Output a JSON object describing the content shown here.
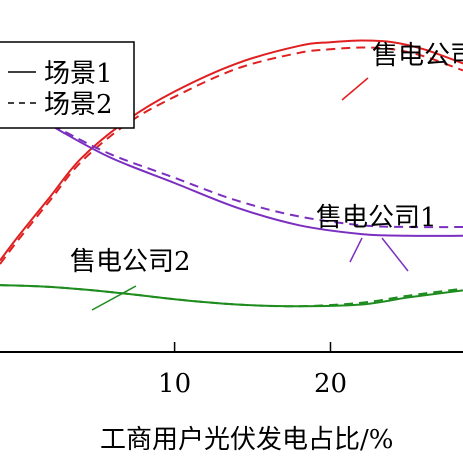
{
  "chart_data": {
    "type": "line",
    "title": "",
    "xlabel": "工商用户光伏发电占比/%",
    "ylabel": "",
    "xlim": [
      -1.2,
      28.5
    ],
    "ylim": [
      0,
      100
    ],
    "x_ticks": [
      10,
      20
    ],
    "grid": false,
    "legend": {
      "placement": "top-left",
      "entries": [
        {
          "label": "场景1",
          "style": "solid"
        },
        {
          "label": "场景2",
          "style": "dashed"
        }
      ]
    },
    "series": [
      {
        "name": "售电公司",
        "color": "#e02020",
        "style": "solid",
        "x": [
          -1.2,
          0,
          2,
          4,
          7,
          10,
          14,
          18,
          20,
          22,
          24,
          26,
          28.5
        ],
        "y": [
          26,
          33,
          44,
          55,
          66,
          74,
          82,
          87,
          88,
          88.5,
          88,
          86,
          82
        ]
      },
      {
        "name": "售电公司",
        "color": "#e02020",
        "style": "dashed",
        "x": [
          -1.2,
          0,
          2,
          4,
          7,
          10,
          14,
          18,
          20,
          22,
          24,
          26,
          28.5
        ],
        "y": [
          25,
          32,
          43,
          54,
          65,
          72.5,
          80.5,
          85,
          86,
          86.5,
          86,
          84,
          80
        ]
      },
      {
        "name": "售电公司1",
        "color": "#7b2fbf",
        "style": "solid",
        "x": [
          -1.2,
          0,
          3,
          6,
          10,
          14,
          18,
          22,
          25,
          28.5
        ],
        "y": [
          73,
          70,
          62,
          55,
          48,
          41,
          36,
          33.5,
          33,
          33
        ]
      },
      {
        "name": "售电公司1",
        "color": "#7b2fbf",
        "style": "dashed",
        "x": [
          -1.2,
          0,
          3,
          6,
          10,
          14,
          18,
          22,
          25,
          28.5
        ],
        "y": [
          73,
          70,
          62.5,
          56,
          49.5,
          43,
          38.5,
          36,
          35.5,
          35.5
        ]
      },
      {
        "name": "售电公司2",
        "color": "#1e8c1e",
        "style": "solid",
        "x": [
          -1.2,
          2,
          6,
          10,
          14,
          18,
          22,
          25,
          28.5
        ],
        "y": [
          19,
          18.5,
          17,
          15,
          13.5,
          13,
          13.5,
          15.5,
          17.5
        ]
      },
      {
        "name": "售电公司2",
        "color": "#1e8c1e",
        "style": "dashed",
        "x": [
          -1.2,
          2,
          6,
          10,
          14,
          18,
          22,
          25,
          28.5
        ],
        "y": [
          19,
          18.5,
          17,
          15,
          13.5,
          13,
          14,
          16,
          18
        ]
      }
    ],
    "annotations": [
      {
        "text": "售电公司",
        "target_series": 0
      },
      {
        "text": "售电公司1",
        "target_series": 2
      },
      {
        "text": "售电公司2",
        "target_series": 4
      }
    ]
  }
}
